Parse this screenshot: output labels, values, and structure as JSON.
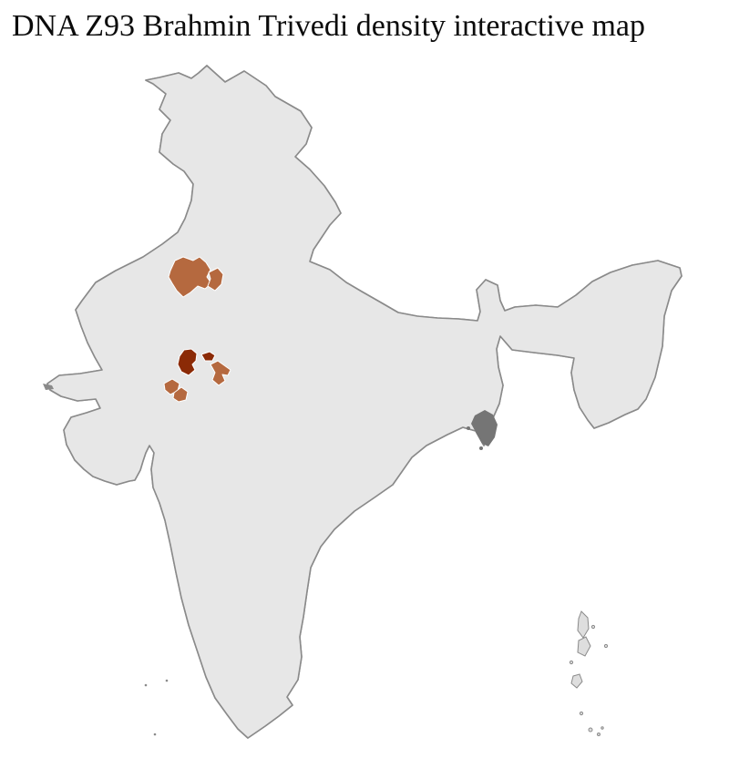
{
  "title": "DNA Z93 Brahmin Trivedi density interactive map",
  "map": {
    "kind": "choropleth-map",
    "background_color": "#ffffff",
    "base_land_color": "#e7e7e7",
    "district_border_color": "#ffffff",
    "state_border_color": "#818181",
    "coastline_color": "#8a8a8a",
    "island_fill_color": "#dedede",
    "dark_islet_color": "#8a8a8a",
    "marsh_patch_color": "#757575",
    "density_scale": [
      {
        "level": "low",
        "color": "#f3dccb"
      },
      {
        "level": "medium",
        "color": "#b5693f"
      },
      {
        "level": "high",
        "color": "#8b2a06"
      }
    ],
    "highlighted_state": {
      "id": "region-rajasthan",
      "level": "low",
      "color": "#f3dccb"
    },
    "highlighted_districts": [
      {
        "id": "district-north-a",
        "level": "medium",
        "color": "#b5693f"
      },
      {
        "id": "district-north-b",
        "level": "medium",
        "color": "#b5693f"
      },
      {
        "id": "district-central-high",
        "level": "high",
        "color": "#8b2a06"
      },
      {
        "id": "district-central-high-east",
        "level": "high",
        "color": "#8b2a06"
      },
      {
        "id": "district-southeast",
        "level": "medium",
        "color": "#b5693f"
      },
      {
        "id": "district-south-a",
        "level": "medium",
        "color": "#b5693f"
      },
      {
        "id": "district-south-b",
        "level": "medium",
        "color": "#b5693f"
      }
    ]
  }
}
